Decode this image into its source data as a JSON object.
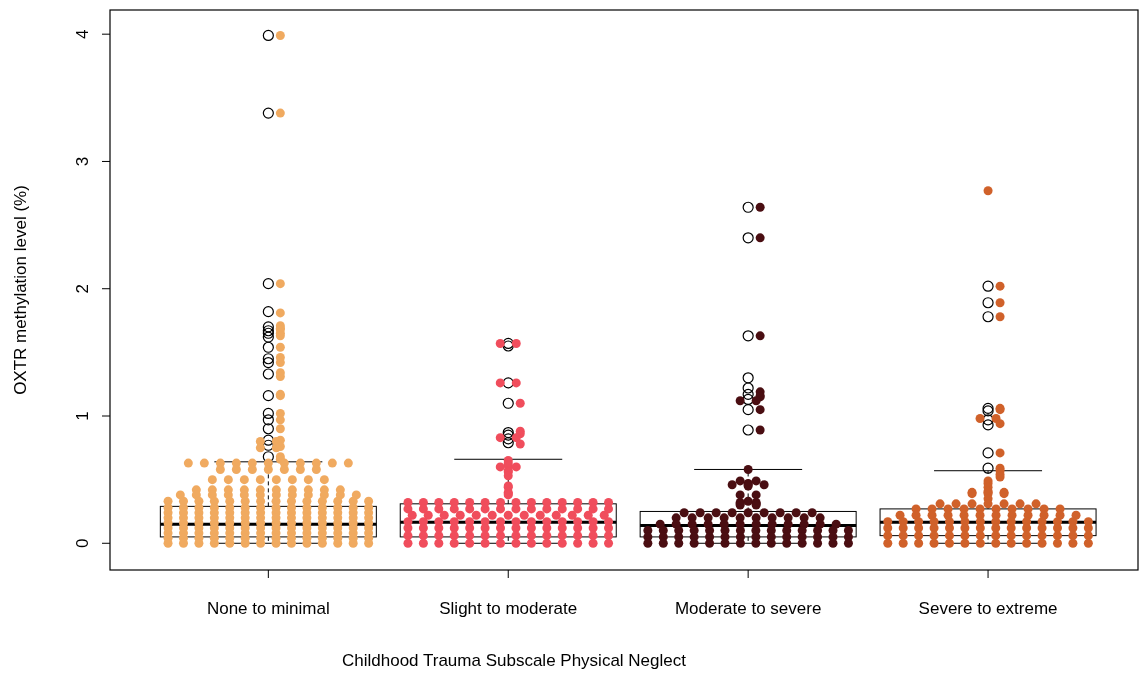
{
  "chart_data": {
    "type": "box",
    "xlabel": "Childhood Trauma Subscale Physical Neglect",
    "ylabel": "OXTR methylation level (%)",
    "categories": [
      "None to minimal",
      "Slight to moderate",
      "Moderate to severe",
      "Severe to extreme"
    ],
    "ylim": [
      -0.21,
      4.19
    ],
    "yticks": [
      0,
      1,
      2,
      3,
      4
    ],
    "boxes": [
      {
        "low": 0,
        "q1": 0.05,
        "median": 0.15,
        "q3": 0.29,
        "high": 0.64,
        "outliers": [
          0.68,
          0.77,
          0.81,
          0.9,
          0.97,
          1.02,
          1.16,
          1.33,
          1.42,
          1.45,
          1.54,
          1.62,
          1.65,
          1.67,
          1.7,
          1.82,
          2.04,
          3.38,
          3.99
        ]
      },
      {
        "low": 0,
        "q1": 0.05,
        "median": 0.165,
        "q3": 0.31,
        "high": 0.66,
        "outliers": [
          0.79,
          0.82,
          0.85,
          0.87,
          1.1,
          1.26,
          1.55,
          1.57
        ]
      },
      {
        "low": 0,
        "q1": 0.05,
        "median": 0.14,
        "q3": 0.25,
        "high": 0.58,
        "outliers": [
          0.89,
          1.05,
          1.13,
          1.17,
          1.22,
          1.3,
          1.63,
          2.4,
          2.64
        ]
      },
      {
        "low": 0,
        "q1": 0.06,
        "median": 0.165,
        "q3": 0.27,
        "high": 0.57,
        "outliers": [
          0.59,
          0.71,
          0.93,
          0.97,
          1.04,
          1.06,
          1.78,
          1.89,
          2.02
        ]
      }
    ],
    "series": [
      {
        "type": "scatter",
        "color": "#f0aa60",
        "marker": "circle",
        "x": [
          "None to minimal",
          "None to minimal",
          "None to minimal",
          "None to minimal",
          "None to minimal",
          "None to minimal",
          "None to minimal",
          "None to minimal",
          "None to minimal",
          "None to minimal",
          "None to minimal",
          "None to minimal",
          "None to minimal",
          "None to minimal",
          "None to minimal",
          "None to minimal",
          "None to minimal",
          "None to minimal",
          "None to minimal",
          "None to minimal",
          "None to minimal",
          "None to minimal",
          "None to minimal",
          "None to minimal",
          "None to minimal",
          "None to minimal",
          "None to minimal",
          "None to minimal",
          "None to minimal",
          "None to minimal",
          "None to minimal",
          "None to minimal",
          "None to minimal",
          "None to minimal",
          "None to minimal",
          "None to minimal",
          "None to minimal",
          "None to minimal",
          "None to minimal",
          "None to minimal",
          "None to minimal",
          "None to minimal",
          "None to minimal",
          "None to minimal",
          "None to minimal",
          "None to minimal",
          "None to minimal",
          "None to minimal",
          "None to minimal",
          "None to minimal",
          "None to minimal",
          "None to minimal",
          "None to minimal",
          "None to minimal",
          "None to minimal",
          "None to minimal",
          "None to minimal",
          "None to minimal",
          "None to minimal",
          "None to minimal",
          "None to minimal",
          "None to minimal",
          "None to minimal",
          "None to minimal",
          "None to minimal",
          "None to minimal",
          "None to minimal",
          "None to minimal",
          "None to minimal",
          "None to minimal",
          "None to minimal",
          "None to minimal",
          "None to minimal",
          "None to minimal",
          "None to minimal",
          "None to minimal",
          "None to minimal",
          "None to minimal",
          "None to minimal",
          "None to minimal",
          "None to minimal",
          "None to minimal",
          "None to minimal",
          "None to minimal",
          "None to minimal",
          "None to minimal",
          "None to minimal",
          "None to minimal",
          "None to minimal",
          "None to minimal",
          "None to minimal",
          "None to minimal",
          "None to minimal",
          "None to minimal",
          "None to minimal",
          "None to minimal",
          "None to minimal",
          "None to minimal",
          "None to minimal",
          "None to minimal",
          "None to minimal",
          "None to minimal",
          "None to minimal",
          "None to minimal",
          "None to minimal",
          "None to minimal",
          "None to minimal",
          "None to minimal",
          "None to minimal",
          "None to minimal",
          "None to minimal",
          "None to minimal",
          "None to minimal",
          "None to minimal",
          "None to minimal",
          "None to minimal",
          "None to minimal",
          "None to minimal",
          "None to minimal",
          "None to minimal",
          "None to minimal",
          "None to minimal",
          "None to minimal",
          "None to minimal",
          "None to minimal",
          "None to minimal",
          "None to minimal",
          "None to minimal",
          "None to minimal",
          "None to minimal",
          "None to minimal",
          "None to minimal",
          "None to minimal",
          "None to minimal",
          "None to minimal",
          "None to minimal",
          "None to minimal",
          "None to minimal",
          "None to minimal",
          "None to minimal",
          "None to minimal",
          "None to minimal",
          "None to minimal",
          "None to minimal",
          "None to minimal",
          "None to minimal",
          "None to minimal",
          "None to minimal",
          "None to minimal",
          "None to minimal",
          "None to minimal",
          "None to minimal",
          "None to minimal",
          "None to minimal",
          "None to minimal",
          "None to minimal",
          "None to minimal",
          "None to minimal",
          "None to minimal",
          "None to minimal",
          "None to minimal",
          "None to minimal",
          "None to minimal",
          "None to minimal",
          "None to minimal",
          "None to minimal",
          "None to minimal",
          "None to minimal",
          "None to minimal",
          "None to minimal",
          "None to minimal",
          "None to minimal",
          "None to minimal",
          "None to minimal",
          "None to minimal",
          "None to minimal",
          "None to minimal",
          "None to minimal",
          "None to minimal",
          "None to minimal",
          "None to minimal",
          "None to minimal",
          "None to minimal",
          "None to minimal",
          "None to minimal",
          "None to minimal",
          "None to minimal",
          "None to minimal",
          "None to minimal",
          "None to minimal",
          "None to minimal",
          "None to minimal",
          "None to minimal",
          "None to minimal",
          "None to minimal",
          "None to minimal",
          "None to minimal",
          "None to minimal",
          "None to minimal",
          "None to minimal",
          "None to minimal"
        ],
        "values": [
          3.99,
          3.38,
          2.04,
          1.81,
          1.71,
          1.69,
          1.68,
          1.65,
          1.63,
          1.54,
          1.46,
          1.42,
          1.34,
          1.31,
          1.17,
          1.16,
          1.02,
          0.97,
          0.9,
          0.81,
          0.8,
          0.8,
          0.76,
          0.75,
          0.75,
          0.68,
          0.66,
          0.63,
          0.63,
          0.63,
          0.63,
          0.63,
          0.63,
          0.63,
          0.63,
          0.63,
          0.63,
          0.63,
          0.58,
          0.58,
          0.58,
          0.58,
          0.58,
          0.58,
          0.58,
          0.5,
          0.5,
          0.5,
          0.5,
          0.5,
          0.5,
          0.5,
          0.5,
          0.42,
          0.42,
          0.42,
          0.42,
          0.42,
          0.42,
          0.42,
          0.42,
          0.42,
          0.42,
          0.38,
          0.38,
          0.38,
          0.38,
          0.38,
          0.38,
          0.38,
          0.38,
          0.38,
          0.38,
          0.38,
          0.38,
          0.33,
          0.33,
          0.33,
          0.33,
          0.33,
          0.33,
          0.33,
          0.33,
          0.33,
          0.33,
          0.33,
          0.33,
          0.33,
          0.33,
          0.28,
          0.28,
          0.28,
          0.28,
          0.28,
          0.28,
          0.28,
          0.28,
          0.28,
          0.28,
          0.28,
          0.28,
          0.28,
          0.28,
          0.24,
          0.24,
          0.24,
          0.24,
          0.24,
          0.24,
          0.24,
          0.24,
          0.24,
          0.24,
          0.24,
          0.24,
          0.24,
          0.24,
          0.2,
          0.2,
          0.2,
          0.2,
          0.2,
          0.2,
          0.2,
          0.2,
          0.2,
          0.2,
          0.2,
          0.2,
          0.2,
          0.2,
          0.16,
          0.16,
          0.16,
          0.16,
          0.16,
          0.16,
          0.16,
          0.16,
          0.16,
          0.16,
          0.16,
          0.16,
          0.16,
          0.16,
          0.12,
          0.12,
          0.12,
          0.12,
          0.12,
          0.12,
          0.12,
          0.12,
          0.12,
          0.12,
          0.12,
          0.12,
          0.12,
          0.12,
          0.08,
          0.08,
          0.08,
          0.08,
          0.08,
          0.08,
          0.08,
          0.08,
          0.08,
          0.08,
          0.08,
          0.08,
          0.08,
          0.08,
          0.04,
          0.04,
          0.04,
          0.04,
          0.04,
          0.04,
          0.04,
          0.04,
          0.04,
          0.04,
          0.04,
          0.04,
          0.04,
          0.04,
          0,
          0,
          0,
          0,
          0,
          0,
          0,
          0,
          0,
          0,
          0,
          0,
          0,
          0
        ]
      },
      {
        "type": "scatter",
        "color": "#f04d5c",
        "marker": "circle",
        "x": [
          "Slight to moderate",
          "Slight to moderate",
          "Slight to moderate",
          "Slight to moderate",
          "Slight to moderate",
          "Slight to moderate",
          "Slight to moderate",
          "Slight to moderate",
          "Slight to moderate",
          "Slight to moderate",
          "Slight to moderate",
          "Slight to moderate",
          "Slight to moderate",
          "Slight to moderate",
          "Slight to moderate",
          "Slight to moderate",
          "Slight to moderate",
          "Slight to moderate",
          "Slight to moderate",
          "Slight to moderate",
          "Slight to moderate",
          "Slight to moderate",
          "Slight to moderate",
          "Slight to moderate",
          "Slight to moderate",
          "Slight to moderate",
          "Slight to moderate",
          "Slight to moderate",
          "Slight to moderate",
          "Slight to moderate",
          "Slight to moderate",
          "Slight to moderate",
          "Slight to moderate",
          "Slight to moderate",
          "Slight to moderate",
          "Slight to moderate",
          "Slight to moderate",
          "Slight to moderate",
          "Slight to moderate",
          "Slight to moderate",
          "Slight to moderate",
          "Slight to moderate",
          "Slight to moderate",
          "Slight to moderate",
          "Slight to moderate",
          "Slight to moderate",
          "Slight to moderate",
          "Slight to moderate",
          "Slight to moderate",
          "Slight to moderate",
          "Slight to moderate",
          "Slight to moderate",
          "Slight to moderate",
          "Slight to moderate",
          "Slight to moderate",
          "Slight to moderate",
          "Slight to moderate",
          "Slight to moderate",
          "Slight to moderate",
          "Slight to moderate",
          "Slight to moderate",
          "Slight to moderate",
          "Slight to moderate",
          "Slight to moderate",
          "Slight to moderate",
          "Slight to moderate",
          "Slight to moderate",
          "Slight to moderate",
          "Slight to moderate",
          "Slight to moderate",
          "Slight to moderate",
          "Slight to moderate",
          "Slight to moderate",
          "Slight to moderate",
          "Slight to moderate",
          "Slight to moderate",
          "Slight to moderate",
          "Slight to moderate",
          "Slight to moderate",
          "Slight to moderate",
          "Slight to moderate",
          "Slight to moderate",
          "Slight to moderate",
          "Slight to moderate",
          "Slight to moderate",
          "Slight to moderate",
          "Slight to moderate",
          "Slight to moderate",
          "Slight to moderate",
          "Slight to moderate",
          "Slight to moderate",
          "Slight to moderate",
          "Slight to moderate",
          "Slight to moderate",
          "Slight to moderate",
          "Slight to moderate",
          "Slight to moderate",
          "Slight to moderate",
          "Slight to moderate",
          "Slight to moderate",
          "Slight to moderate",
          "Slight to moderate",
          "Slight to moderate",
          "Slight to moderate",
          "Slight to moderate",
          "Slight to moderate",
          "Slight to moderate",
          "Slight to moderate",
          "Slight to moderate",
          "Slight to moderate",
          "Slight to moderate",
          "Slight to moderate",
          "Slight to moderate",
          "Slight to moderate",
          "Slight to moderate",
          "Slight to moderate",
          "Slight to moderate",
          "Slight to moderate",
          "Slight to moderate",
          "Slight to moderate"
        ],
        "values": [
          1.57,
          1.57,
          1.26,
          1.26,
          1.1,
          0.88,
          0.86,
          0.83,
          0.83,
          0.78,
          0.65,
          0.63,
          0.61,
          0.6,
          0.6,
          0.57,
          0.56,
          0.53,
          0.45,
          0.44,
          0.4,
          0.39,
          0.38,
          0.32,
          0.32,
          0.32,
          0.32,
          0.32,
          0.32,
          0.32,
          0.32,
          0.32,
          0.32,
          0.32,
          0.32,
          0.32,
          0.32,
          0.27,
          0.27,
          0.27,
          0.27,
          0.27,
          0.27,
          0.27,
          0.27,
          0.27,
          0.27,
          0.27,
          0.27,
          0.27,
          0.27,
          0.22,
          0.22,
          0.22,
          0.22,
          0.22,
          0.22,
          0.22,
          0.22,
          0.22,
          0.22,
          0.22,
          0.22,
          0.22,
          0.17,
          0.17,
          0.17,
          0.17,
          0.17,
          0.17,
          0.17,
          0.17,
          0.17,
          0.17,
          0.17,
          0.17,
          0.17,
          0.17,
          0.12,
          0.12,
          0.12,
          0.12,
          0.12,
          0.12,
          0.12,
          0.12,
          0.12,
          0.12,
          0.12,
          0.12,
          0.12,
          0.12,
          0.06,
          0.06,
          0.06,
          0.06,
          0.06,
          0.06,
          0.06,
          0.06,
          0.06,
          0.06,
          0.06,
          0.06,
          0.06,
          0.06,
          0,
          0,
          0,
          0,
          0,
          0,
          0,
          0,
          0,
          0,
          0,
          0,
          0,
          0
        ]
      },
      {
        "type": "scatter",
        "color": "#4a0e12",
        "marker": "circle",
        "x": [
          "Moderate to severe",
          "Moderate to severe",
          "Moderate to severe",
          "Moderate to severe",
          "Moderate to severe",
          "Moderate to severe",
          "Moderate to severe",
          "Moderate to severe",
          "Moderate to severe",
          "Moderate to severe",
          "Moderate to severe",
          "Moderate to severe",
          "Moderate to severe",
          "Moderate to severe",
          "Moderate to severe",
          "Moderate to severe",
          "Moderate to severe",
          "Moderate to severe",
          "Moderate to severe",
          "Moderate to severe",
          "Moderate to severe",
          "Moderate to severe",
          "Moderate to severe",
          "Moderate to severe",
          "Moderate to severe",
          "Moderate to severe",
          "Moderate to severe",
          "Moderate to severe",
          "Moderate to severe",
          "Moderate to severe",
          "Moderate to severe",
          "Moderate to severe",
          "Moderate to severe",
          "Moderate to severe",
          "Moderate to severe",
          "Moderate to severe",
          "Moderate to severe",
          "Moderate to severe",
          "Moderate to severe",
          "Moderate to severe",
          "Moderate to severe",
          "Moderate to severe",
          "Moderate to severe",
          "Moderate to severe",
          "Moderate to severe",
          "Moderate to severe",
          "Moderate to severe",
          "Moderate to severe",
          "Moderate to severe",
          "Moderate to severe",
          "Moderate to severe",
          "Moderate to severe",
          "Moderate to severe",
          "Moderate to severe",
          "Moderate to severe",
          "Moderate to severe",
          "Moderate to severe",
          "Moderate to severe",
          "Moderate to severe",
          "Moderate to severe",
          "Moderate to severe",
          "Moderate to severe",
          "Moderate to severe",
          "Moderate to severe",
          "Moderate to severe",
          "Moderate to severe",
          "Moderate to severe",
          "Moderate to severe",
          "Moderate to severe",
          "Moderate to severe",
          "Moderate to severe",
          "Moderate to severe",
          "Moderate to severe",
          "Moderate to severe",
          "Moderate to severe",
          "Moderate to severe",
          "Moderate to severe",
          "Moderate to severe",
          "Moderate to severe",
          "Moderate to severe",
          "Moderate to severe",
          "Moderate to severe",
          "Moderate to severe",
          "Moderate to severe",
          "Moderate to severe",
          "Moderate to severe",
          "Moderate to severe",
          "Moderate to severe",
          "Moderate to severe",
          "Moderate to severe",
          "Moderate to severe",
          "Moderate to severe",
          "Moderate to severe",
          "Moderate to severe",
          "Moderate to severe",
          "Moderate to severe",
          "Moderate to severe",
          "Moderate to severe",
          "Moderate to severe",
          "Moderate to severe"
        ],
        "values": [
          2.64,
          2.4,
          1.63,
          1.19,
          1.16,
          1.15,
          1.12,
          1.12,
          1.05,
          0.89,
          0.58,
          0.49,
          0.49,
          0.47,
          0.46,
          0.46,
          0.46,
          0.45,
          0.38,
          0.38,
          0.33,
          0.32,
          0.32,
          0.31,
          0.31,
          0.3,
          0.3,
          0.24,
          0.24,
          0.24,
          0.24,
          0.24,
          0.24,
          0.24,
          0.24,
          0.24,
          0.2,
          0.2,
          0.2,
          0.2,
          0.2,
          0.2,
          0.2,
          0.2,
          0.2,
          0.2,
          0.15,
          0.15,
          0.15,
          0.15,
          0.15,
          0.15,
          0.15,
          0.15,
          0.15,
          0.15,
          0.15,
          0.15,
          0.1,
          0.1,
          0.1,
          0.1,
          0.1,
          0.1,
          0.1,
          0.1,
          0.1,
          0.1,
          0.1,
          0.1,
          0.1,
          0.1,
          0.05,
          0.05,
          0.05,
          0.05,
          0.05,
          0.05,
          0.05,
          0.05,
          0.05,
          0.05,
          0.05,
          0.05,
          0.05,
          0.05,
          0,
          0,
          0,
          0,
          0,
          0,
          0,
          0,
          0,
          0,
          0,
          0,
          0,
          0
        ]
      },
      {
        "type": "scatter",
        "color": "#d0612a",
        "marker": "circle",
        "x": [
          "Severe to extreme",
          "Severe to extreme",
          "Severe to extreme",
          "Severe to extreme",
          "Severe to extreme",
          "Severe to extreme",
          "Severe to extreme",
          "Severe to extreme",
          "Severe to extreme",
          "Severe to extreme",
          "Severe to extreme",
          "Severe to extreme",
          "Severe to extreme",
          "Severe to extreme",
          "Severe to extreme",
          "Severe to extreme",
          "Severe to extreme",
          "Severe to extreme",
          "Severe to extreme",
          "Severe to extreme",
          "Severe to extreme",
          "Severe to extreme",
          "Severe to extreme",
          "Severe to extreme",
          "Severe to extreme",
          "Severe to extreme",
          "Severe to extreme",
          "Severe to extreme",
          "Severe to extreme",
          "Severe to extreme",
          "Severe to extreme",
          "Severe to extreme",
          "Severe to extreme",
          "Severe to extreme",
          "Severe to extreme",
          "Severe to extreme",
          "Severe to extreme",
          "Severe to extreme",
          "Severe to extreme",
          "Severe to extreme",
          "Severe to extreme",
          "Severe to extreme",
          "Severe to extreme",
          "Severe to extreme",
          "Severe to extreme",
          "Severe to extreme",
          "Severe to extreme",
          "Severe to extreme",
          "Severe to extreme",
          "Severe to extreme",
          "Severe to extreme",
          "Severe to extreme",
          "Severe to extreme",
          "Severe to extreme",
          "Severe to extreme",
          "Severe to extreme",
          "Severe to extreme",
          "Severe to extreme",
          "Severe to extreme",
          "Severe to extreme",
          "Severe to extreme",
          "Severe to extreme",
          "Severe to extreme",
          "Severe to extreme",
          "Severe to extreme",
          "Severe to extreme",
          "Severe to extreme",
          "Severe to extreme",
          "Severe to extreme",
          "Severe to extreme",
          "Severe to extreme",
          "Severe to extreme",
          "Severe to extreme",
          "Severe to extreme",
          "Severe to extreme",
          "Severe to extreme",
          "Severe to extreme",
          "Severe to extreme",
          "Severe to extreme",
          "Severe to extreme",
          "Severe to extreme",
          "Severe to extreme",
          "Severe to extreme",
          "Severe to extreme",
          "Severe to extreme",
          "Severe to extreme",
          "Severe to extreme",
          "Severe to extreme",
          "Severe to extreme",
          "Severe to extreme",
          "Severe to extreme",
          "Severe to extreme",
          "Severe to extreme",
          "Severe to extreme",
          "Severe to extreme",
          "Severe to extreme",
          "Severe to extreme",
          "Severe to extreme",
          "Severe to extreme",
          "Severe to extreme",
          "Severe to extreme",
          "Severe to extreme",
          "Severe to extreme",
          "Severe to extreme",
          "Severe to extreme",
          "Severe to extreme",
          "Severe to extreme",
          "Severe to extreme",
          "Severe to extreme",
          "Severe to extreme"
        ],
        "values": [
          2.77,
          2.02,
          1.89,
          1.78,
          1.06,
          1.05,
          0.98,
          0.98,
          0.94,
          0.71,
          0.59,
          0.57,
          0.54,
          0.52,
          0.49,
          0.47,
          0.44,
          0.41,
          0.4,
          0.4,
          0.4,
          0.39,
          0.39,
          0.39,
          0.35,
          0.31,
          0.31,
          0.31,
          0.31,
          0.31,
          0.31,
          0.31,
          0.27,
          0.27,
          0.27,
          0.27,
          0.27,
          0.27,
          0.27,
          0.27,
          0.27,
          0.27,
          0.22,
          0.22,
          0.22,
          0.22,
          0.22,
          0.22,
          0.22,
          0.22,
          0.22,
          0.22,
          0.22,
          0.22,
          0.17,
          0.17,
          0.17,
          0.17,
          0.17,
          0.17,
          0.17,
          0.17,
          0.17,
          0.17,
          0.17,
          0.17,
          0.17,
          0.17,
          0.12,
          0.12,
          0.12,
          0.12,
          0.12,
          0.12,
          0.12,
          0.12,
          0.12,
          0.12,
          0.12,
          0.12,
          0.12,
          0.12,
          0.06,
          0.06,
          0.06,
          0.06,
          0.06,
          0.06,
          0.06,
          0.06,
          0.06,
          0.06,
          0.06,
          0.06,
          0.06,
          0.06,
          0,
          0,
          0,
          0,
          0,
          0,
          0,
          0,
          0,
          0,
          0,
          0,
          0,
          0
        ]
      }
    ]
  }
}
